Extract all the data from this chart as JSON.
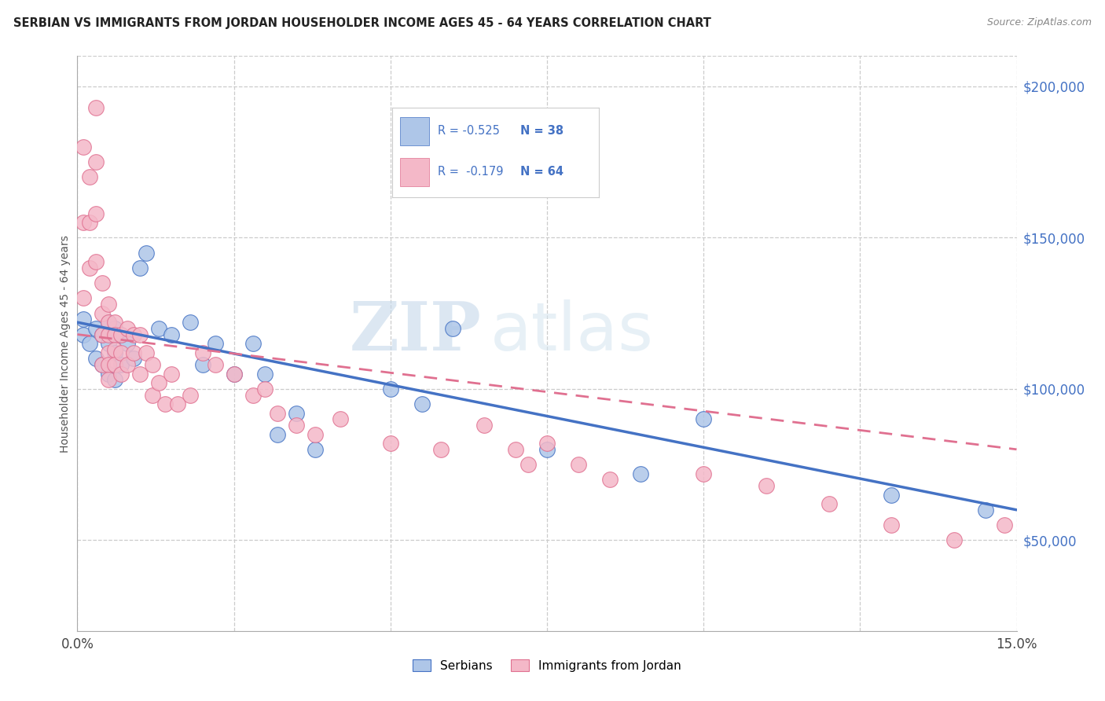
{
  "title": "SERBIAN VS IMMIGRANTS FROM JORDAN HOUSEHOLDER INCOME AGES 45 - 64 YEARS CORRELATION CHART",
  "source": "Source: ZipAtlas.com",
  "ylabel": "Householder Income Ages 45 - 64 years",
  "x_min": 0.0,
  "x_max": 0.15,
  "y_min": 20000,
  "y_max": 210000,
  "x_ticks": [
    0.0,
    0.025,
    0.05,
    0.075,
    0.1,
    0.125,
    0.15
  ],
  "x_tick_labels": [
    "0.0%",
    "",
    "",
    "",
    "",
    "",
    "15.0%"
  ],
  "y_ticks_right": [
    50000,
    100000,
    150000,
    200000
  ],
  "y_tick_labels_right": [
    "$50,000",
    "$100,000",
    "$150,000",
    "$200,000"
  ],
  "legend_r_serbian": "-0.525",
  "legend_n_serbian": "38",
  "legend_r_jordan": "-0.179",
  "legend_n_jordan": "64",
  "color_serbian": "#aec6e8",
  "color_jordan": "#f4b8c8",
  "line_color_serbian": "#4472c4",
  "line_color_jordan": "#e07090",
  "watermark_zip": "ZIP",
  "watermark_atlas": "atlas",
  "serbian_x": [
    0.001,
    0.001,
    0.002,
    0.003,
    0.003,
    0.004,
    0.004,
    0.005,
    0.005,
    0.005,
    0.006,
    0.006,
    0.006,
    0.007,
    0.007,
    0.008,
    0.009,
    0.01,
    0.011,
    0.013,
    0.015,
    0.018,
    0.02,
    0.022,
    0.025,
    0.028,
    0.03,
    0.032,
    0.035,
    0.038,
    0.05,
    0.055,
    0.06,
    0.075,
    0.09,
    0.1,
    0.13,
    0.145
  ],
  "serbian_y": [
    123000,
    118000,
    115000,
    120000,
    110000,
    118000,
    108000,
    122000,
    115000,
    105000,
    120000,
    112000,
    103000,
    118000,
    108000,
    115000,
    110000,
    140000,
    145000,
    120000,
    118000,
    122000,
    108000,
    115000,
    105000,
    115000,
    105000,
    85000,
    92000,
    80000,
    100000,
    95000,
    120000,
    80000,
    72000,
    90000,
    65000,
    60000
  ],
  "jordan_x": [
    0.001,
    0.001,
    0.001,
    0.002,
    0.002,
    0.002,
    0.003,
    0.003,
    0.003,
    0.003,
    0.004,
    0.004,
    0.004,
    0.004,
    0.005,
    0.005,
    0.005,
    0.005,
    0.005,
    0.005,
    0.006,
    0.006,
    0.006,
    0.006,
    0.007,
    0.007,
    0.007,
    0.008,
    0.008,
    0.009,
    0.009,
    0.01,
    0.01,
    0.011,
    0.012,
    0.012,
    0.013,
    0.014,
    0.015,
    0.016,
    0.018,
    0.02,
    0.022,
    0.025,
    0.028,
    0.03,
    0.032,
    0.035,
    0.038,
    0.042,
    0.05,
    0.058,
    0.065,
    0.07,
    0.072,
    0.075,
    0.08,
    0.085,
    0.1,
    0.11,
    0.12,
    0.13,
    0.14,
    0.148
  ],
  "jordan_y": [
    180000,
    155000,
    130000,
    170000,
    155000,
    140000,
    193000,
    175000,
    158000,
    142000,
    135000,
    125000,
    118000,
    108000,
    128000,
    122000,
    118000,
    112000,
    108000,
    103000,
    122000,
    118000,
    113000,
    108000,
    118000,
    112000,
    105000,
    120000,
    108000,
    118000,
    112000,
    118000,
    105000,
    112000,
    108000,
    98000,
    102000,
    95000,
    105000,
    95000,
    98000,
    112000,
    108000,
    105000,
    98000,
    100000,
    92000,
    88000,
    85000,
    90000,
    82000,
    80000,
    88000,
    80000,
    75000,
    82000,
    75000,
    70000,
    72000,
    68000,
    62000,
    55000,
    50000,
    55000
  ]
}
